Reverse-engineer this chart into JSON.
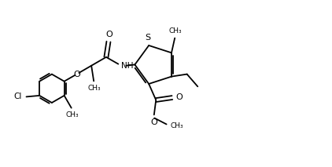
{
  "background": "#ffffff",
  "line_color": "#000000",
  "lw": 1.3,
  "figsize": [
    4.22,
    2.13
  ],
  "dpi": 100,
  "xlim": [
    0,
    10
  ],
  "ylim": [
    0,
    5
  ]
}
